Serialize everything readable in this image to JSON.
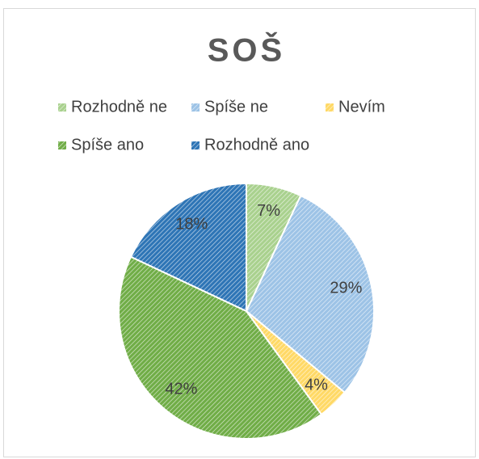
{
  "chart_data": {
    "type": "pie",
    "title": "SOŠ",
    "categories": [
      "Rozhodně ne",
      "Spíše ne",
      "Nevím",
      "Spíše ano",
      "Rozhodně ano"
    ],
    "values": [
      7,
      29,
      4,
      42,
      18
    ],
    "value_labels": [
      "7%",
      "29%",
      "4%",
      "42%",
      "18%"
    ],
    "colors": [
      "#a9d18e",
      "#9dc3e6",
      "#ffd966",
      "#70ad47",
      "#2e75b6"
    ],
    "legend": "top"
  }
}
